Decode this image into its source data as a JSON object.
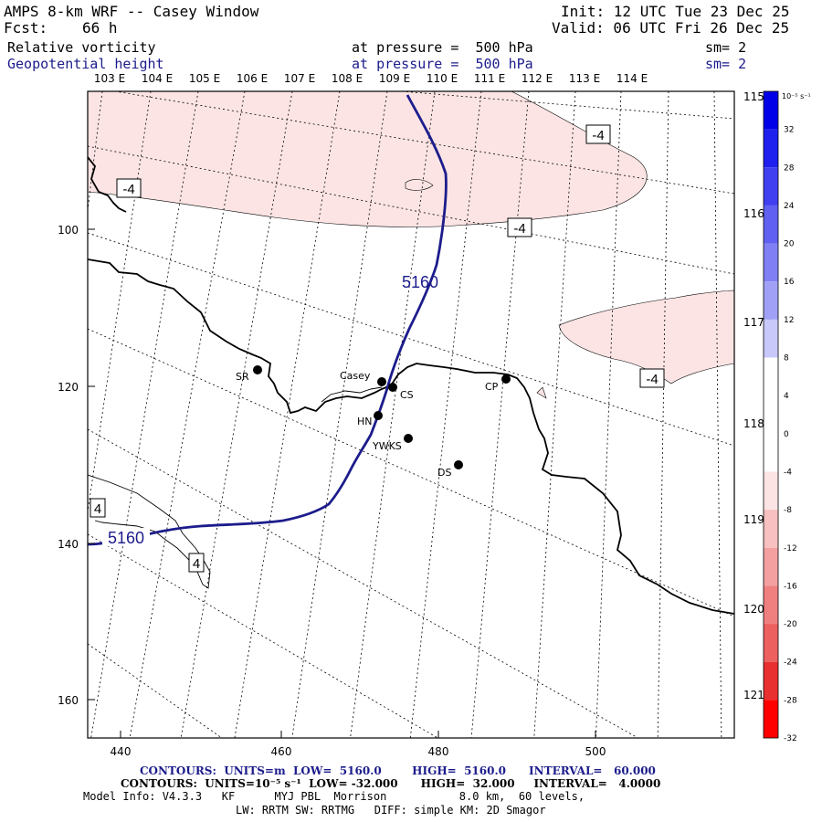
{
  "header": {
    "title": "AMPS 8-km WRF -- Casey Window",
    "fcst_label": "Fcst:",
    "fcst_value": "66 h",
    "init": "Init: 12 UTC Tue 23 Dec 25",
    "valid": "Valid: 06 UTC Fri 26 Dec 25",
    "field1": {
      "name": "Relative vorticity",
      "level": "at pressure =  500 hPa",
      "sm": "sm= 2"
    },
    "field2": {
      "name": "Geopotential height",
      "level": "at pressure =  500 hPa",
      "sm": "sm= 2"
    }
  },
  "top_lon_labels": [
    "103 E",
    "104 E",
    "105 E",
    "106 E",
    "107 E",
    "108 E",
    "109 E",
    "110 E",
    "111 E",
    "112 E",
    "113 E",
    "114 E"
  ],
  "right_lon_labels": [
    "115 E",
    "116 E",
    "117 E",
    "118 E",
    "119 E",
    "120 E",
    "121 E"
  ],
  "x_ticks": [
    "440",
    "460",
    "480",
    "500"
  ],
  "y_ticks": [
    "100",
    "120",
    "140",
    "160"
  ],
  "stations": [
    {
      "name": "SR"
    },
    {
      "name": "Casey"
    },
    {
      "name": "CS"
    },
    {
      "name": "CP"
    },
    {
      "name": "HN"
    },
    {
      "name": "YWKS"
    },
    {
      "name": "DS"
    }
  ],
  "contour_labels": {
    "height": "5160",
    "vort_neg": "-4",
    "vort_pos": "4"
  },
  "colorbar": {
    "unit": "10⁻⁵ s⁻¹",
    "levels": [
      "32",
      "28",
      "24",
      "20",
      "16",
      "12",
      "8",
      "4",
      "0",
      "-4",
      "-8",
      "-12",
      "-16",
      "-20",
      "-24",
      "-28",
      "-32"
    ],
    "colors": [
      "#0000e8",
      "#2020ee",
      "#4040f0",
      "#6060f2",
      "#8080f4",
      "#a0a0f6",
      "#c8c8fa",
      "#ffffff",
      "#ffffff",
      "#ffffff",
      "#fce4e4",
      "#f8c0c0",
      "#f4a0a0",
      "#f08080",
      "#ec6060",
      "#e83030",
      "#ff0000"
    ]
  },
  "footer": {
    "contours1": "CONTOURS:  UNITS=m  LOW=  5160.0        HIGH=  5160.0      INTERVAL=   60.000",
    "contours2": "CONTOURS:  UNITS=10⁻⁵ s⁻¹  LOW= -32.000      HIGH=  32.000     INTERVAL=   4.0000",
    "model1": "Model Info: V4.3.3   KF      MYJ PBL  Morrison           8.0 km,  60 levels,",
    "model2": "LW: RRTM SW: RRTMG   DIFF: simple KM: 2D Smagor"
  }
}
